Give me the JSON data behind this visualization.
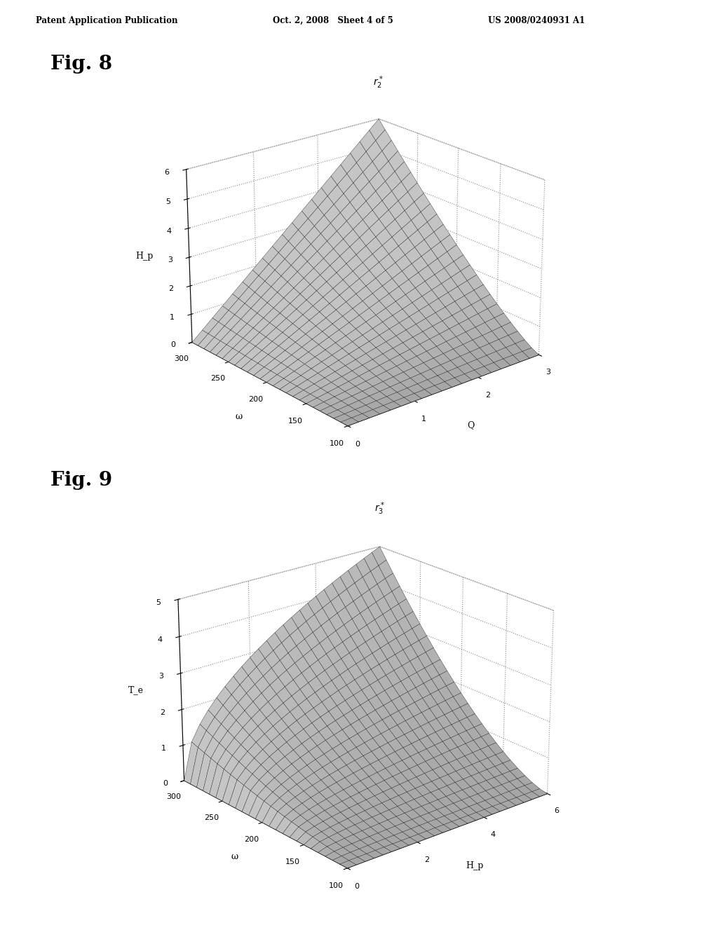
{
  "fig8_title": "Fig. 8",
  "fig9_title": "Fig. 9",
  "patent_header": "Patent Application Publication",
  "patent_date": "Oct. 2, 2008",
  "patent_sheet": "Sheet 4 of 5",
  "patent_number": "US 2008/0240931 A1",
  "fig8_r_label": "$r_2^*$",
  "fig8_xlabel": "Q",
  "fig8_ylabel": "ω",
  "fig8_zlabel": "H_p",
  "fig9_r_label": "$r_3^*$",
  "fig9_xlabel": "H_p",
  "fig9_ylabel": "ω",
  "fig9_zlabel": "T_e",
  "background_color": "#ffffff",
  "fig8_Q_ticks": [
    0,
    1,
    2,
    3
  ],
  "fig8_omega_ticks": [
    100,
    150,
    200,
    250,
    300
  ],
  "fig8_z_ticks": [
    0,
    1,
    2,
    3,
    4,
    5,
    6
  ],
  "fig9_Hp_ticks": [
    0,
    2,
    4,
    6
  ],
  "fig9_omega_ticks": [
    100,
    150,
    200,
    250,
    300
  ],
  "fig9_z_ticks": [
    0,
    1,
    2,
    3,
    4,
    5
  ]
}
